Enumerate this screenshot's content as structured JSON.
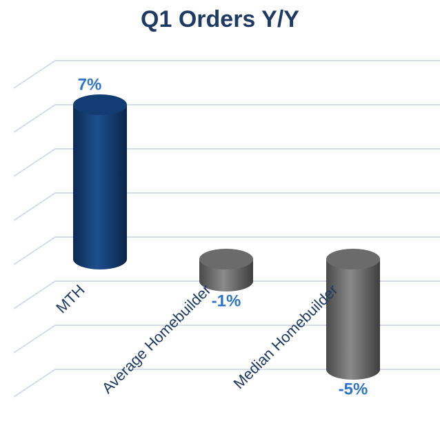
{
  "chart_data": {
    "type": "bar",
    "title": "Q1 Orders Y/Y",
    "categories": [
      "MTH",
      "Average Homebuilder",
      "Median Homebuilder"
    ],
    "values": [
      7,
      -1,
      -5
    ],
    "value_labels": [
      "7%",
      "-1%",
      "-5%"
    ],
    "colors": [
      "#123d73",
      "#6b6b6b",
      "#6b6b6b"
    ],
    "ylim": [
      -6,
      8
    ],
    "yticks": [
      -6,
      -4,
      -2,
      0,
      2,
      4,
      6,
      8
    ],
    "grid": true
  }
}
